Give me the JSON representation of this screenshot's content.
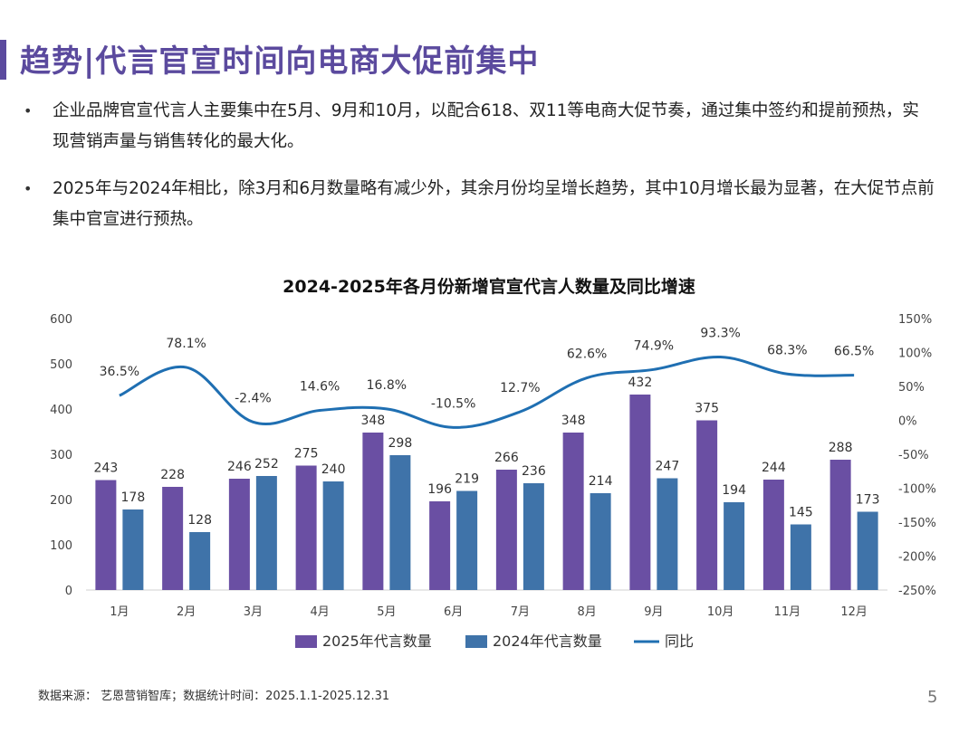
{
  "header": {
    "title": "趋势|代言官宣时间向电商大促前集中"
  },
  "bullets": [
    {
      "marker": "•",
      "text": "企业品牌官宣代言人主要集中在5月、9月和10月，以配合618、双11等电商大促节奏，通过集中签约和提前预热，实现营销声量与销售转化的最大化。"
    },
    {
      "marker": "•",
      "text": "2025年与2024年相比，除3月和6月数量略有减少外，其余月份均呈增长趋势，其中10月增长最为显著，在大促节点前集中官宣进行预热。"
    }
  ],
  "footer": {
    "source": "数据来源： 艺恩营销智库；数据统计时间：2025.1.1-2025.12.31",
    "page_number": "5"
  },
  "colors": {
    "accent": "#5b4a9e",
    "bar2025": "#6a4fa3",
    "bar2024": "#3f73a9",
    "line": "#1f6fb2"
  },
  "chart_data": {
    "type": "bar",
    "title": "2024-2025年各月份新增官宣代言人数量及同比增速",
    "categories": [
      "1月",
      "2月",
      "3月",
      "4月",
      "5月",
      "6月",
      "7月",
      "8月",
      "9月",
      "10月",
      "11月",
      "12月"
    ],
    "series": [
      {
        "name": "2025年代言数量",
        "type": "bar",
        "axis": "left",
        "values": [
          243,
          228,
          246,
          275,
          348,
          196,
          266,
          348,
          432,
          375,
          244,
          288
        ]
      },
      {
        "name": "2024年代言数量",
        "type": "bar",
        "axis": "left",
        "values": [
          178,
          128,
          252,
          240,
          298,
          219,
          236,
          214,
          247,
          194,
          145,
          173
        ]
      },
      {
        "name": "同比",
        "type": "line",
        "axis": "right",
        "values": [
          36.5,
          78.1,
          -2.4,
          14.6,
          16.8,
          -10.5,
          12.7,
          62.6,
          74.9,
          93.3,
          68.3,
          66.5
        ],
        "labels": [
          "36.5%",
          "78.1%",
          "-2.4%",
          "14.6%",
          "16.8%",
          "-10.5%",
          "12.7%",
          "62.6%",
          "74.9%",
          "93.3%",
          "68.3%",
          "66.5%"
        ]
      }
    ],
    "y_left": {
      "min": 0,
      "max": 600,
      "ticks": [
        "0",
        "100",
        "200",
        "300",
        "400",
        "500",
        "600"
      ]
    },
    "y_right": {
      "min": -250,
      "max": 150,
      "ticks": [
        "-250%",
        "-200%",
        "-150%",
        "-100%",
        "-50%",
        "0%",
        "50%",
        "100%",
        "150%"
      ]
    },
    "legend": "bottom",
    "grid": false
  }
}
